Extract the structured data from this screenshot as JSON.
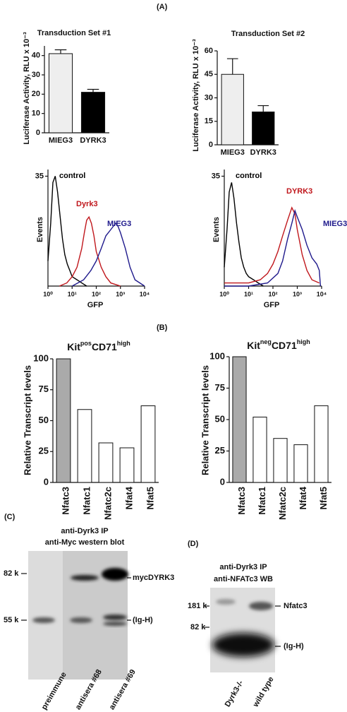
{
  "panels": [
    "(A)",
    "(B)"
  ],
  "chart_data": [
    {
      "type": "bar",
      "title": "Transduction Set #1",
      "ylabel": "Luciferase Activity, RLU x 10⁻³",
      "categories": [
        "MIEG3",
        "DYRK3"
      ],
      "values": [
        41,
        21
      ],
      "errors": [
        2,
        1.5
      ],
      "colors": [
        "#eeeeee",
        "#000000"
      ],
      "ylim": [
        0,
        45
      ],
      "yticks": [
        0,
        10,
        20,
        30,
        40
      ]
    },
    {
      "type": "bar",
      "title": "Transduction Set #2",
      "ylabel": "Luciferase Activity, RLU x 10⁻³",
      "categories": [
        "MIEG3",
        "DYRK3"
      ],
      "values": [
        45,
        21
      ],
      "errors": [
        10,
        4
      ],
      "colors": [
        "#eeeeee",
        "#000000"
      ],
      "ylim": [
        0,
        60
      ],
      "yticks": [
        0,
        15,
        30,
        45,
        60
      ]
    },
    {
      "type": "line",
      "xlabel": "GFP",
      "ylabel": "Events",
      "log_x": true,
      "xlim": [
        1,
        10000
      ],
      "xticks": [
        {
          "value": 1,
          "label": "10⁰"
        },
        {
          "value": 10,
          "label": "10¹"
        },
        {
          "value": 100,
          "label": "10²"
        },
        {
          "value": 1000,
          "label": "10³"
        },
        {
          "value": 10000,
          "label": "10⁴"
        }
      ],
      "ylim": [
        0,
        36
      ],
      "yticks": [
        35
      ],
      "series": [
        {
          "name": "control",
          "color": "#000000",
          "x": [
            1,
            1.3,
            1.6,
            2,
            2.5,
            3.2,
            4,
            5,
            6.3,
            8,
            10,
            16,
            25,
            40
          ],
          "values": [
            8,
            20,
            33,
            35,
            30,
            22,
            15,
            10,
            7,
            5,
            3,
            2,
            1,
            0
          ]
        },
        {
          "name": "Dyrk3",
          "color": "#c0171c",
          "x": [
            3,
            6,
            10,
            16,
            25,
            32,
            40,
            50,
            63,
            80,
            100,
            160,
            250,
            400,
            1000
          ],
          "values": [
            0,
            1,
            3,
            6,
            12,
            17,
            21,
            22,
            20,
            16,
            11,
            6,
            3,
            1,
            0
          ]
        },
        {
          "name": "MIEG3",
          "color": "#1f1a8c",
          "x": [
            10,
            30,
            60,
            100,
            160,
            250,
            400,
            630,
            800,
            1000,
            1600,
            2500,
            4000,
            10000
          ],
          "values": [
            0,
            2,
            5,
            8,
            12,
            16,
            18,
            20,
            19,
            17,
            12,
            6,
            2,
            0
          ]
        }
      ]
    },
    {
      "type": "line",
      "xlabel": "GFP",
      "ylabel": "Events",
      "log_x": true,
      "xlim": [
        1,
        10000
      ],
      "xticks": [
        {
          "value": 1,
          "label": "10⁰"
        },
        {
          "value": 10,
          "label": "10¹"
        },
        {
          "value": 100,
          "label": "10²"
        },
        {
          "value": 1000,
          "label": "10³"
        },
        {
          "value": 10000,
          "label": "10⁴"
        }
      ],
      "ylim": [
        0,
        36
      ],
      "yticks": [
        35
      ],
      "series": [
        {
          "name": "control",
          "color": "#000000",
          "x": [
            1,
            1.3,
            1.6,
            2,
            2.5,
            3.2,
            4,
            5,
            6.3,
            8,
            10,
            16,
            25,
            40
          ],
          "values": [
            6,
            18,
            30,
            33,
            28,
            20,
            14,
            9,
            6,
            4,
            3,
            2,
            1,
            0
          ]
        },
        {
          "name": "DYRK3",
          "color": "#c0171c",
          "x": [
            1,
            10,
            30,
            60,
            100,
            160,
            250,
            400,
            600,
            800,
            1000,
            1600,
            2500,
            4000,
            8000
          ],
          "values": [
            1,
            1,
            2,
            4,
            7,
            11,
            16,
            21,
            25,
            23,
            18,
            10,
            5,
            2,
            1
          ]
        },
        {
          "name": "MIEG3",
          "color": "#1f1a8c",
          "x": [
            1,
            10,
            60,
            160,
            250,
            400,
            600,
            800,
            1000,
            1600,
            2500,
            4000,
            6300,
            8000,
            9000
          ],
          "values": [
            0,
            0,
            1,
            4,
            8,
            15,
            20,
            24,
            22,
            18,
            13,
            9,
            7,
            5,
            0
          ]
        }
      ]
    },
    {
      "type": "bar",
      "title": [
        "Kit",
        "pos",
        "CD71",
        "high"
      ],
      "ylabel": "Relative Transcript levels",
      "categories": [
        "Nfatc3",
        "Nfatc1",
        "Nfatc2c",
        "Nfat4",
        "Nfat5"
      ],
      "values": [
        100,
        59,
        32,
        28,
        62
      ],
      "colors": [
        "#aaaaaa",
        "#ffffff",
        "#ffffff",
        "#ffffff",
        "#ffffff"
      ],
      "ylim": [
        0,
        100
      ],
      "yticks": [
        0,
        25,
        50,
        75,
        100
      ]
    },
    {
      "type": "bar",
      "title": [
        "Kit",
        "neg",
        "CD71",
        "high"
      ],
      "ylabel": "Relative Transcript levels",
      "categories": [
        "Nfatc3",
        "Nfatc1",
        "Nfatc2c",
        "Nfat4",
        "Nfat5"
      ],
      "values": [
        100,
        52,
        35,
        30,
        61
      ],
      "colors": [
        "#aaaaaa",
        "#ffffff",
        "#ffffff",
        "#ffffff",
        "#ffffff"
      ],
      "ylim": [
        0,
        100
      ],
      "yticks": [
        0,
        25,
        50,
        75,
        100
      ]
    }
  ],
  "blots": [
    {
      "panel": "(C)",
      "title": [
        "anti-Dyrk3 IP",
        "anti-Myc western blot"
      ],
      "markers": [
        "82 k",
        "55 k"
      ],
      "bands": [
        "mycDYRK3",
        "(Ig-H)"
      ],
      "lanes": [
        "preimmune",
        "antisera #68",
        "antisera #69"
      ]
    },
    {
      "panel": "(D)",
      "title": [
        "anti-Dyrk3 IP",
        "anti-NFATc3 WB"
      ],
      "markers": [
        "181 k",
        "82 k"
      ],
      "bands": [
        "Nfatc3",
        "(Ig-H)"
      ],
      "lanes": [
        "Dyrk3-/-",
        "wild type"
      ]
    }
  ]
}
